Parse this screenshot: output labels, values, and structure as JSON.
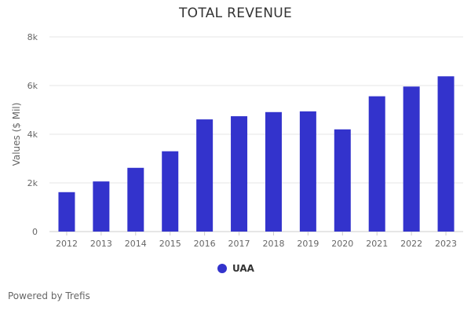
{
  "chart_data": {
    "type": "bar",
    "title": "TOTAL REVENUE",
    "xlabel": "",
    "ylabel": "Values ($ Mil)",
    "categories": [
      "2012",
      "2013",
      "2014",
      "2015",
      "2016",
      "2017",
      "2018",
      "2019",
      "2020",
      "2021",
      "2022",
      "2023"
    ],
    "series": [
      {
        "name": "UAA",
        "color": "#3333cc",
        "values": [
          1620,
          2060,
          2620,
          3300,
          4610,
          4740,
          4910,
          4940,
          4200,
          5560,
          5960,
          6380
        ]
      }
    ],
    "ylim": [
      0,
      8000
    ],
    "yticks": [
      0,
      2000,
      4000,
      6000,
      8000
    ],
    "ytick_labels": [
      "0",
      "2k",
      "4k",
      "6k",
      "8k"
    ],
    "grid": true,
    "legend_position": "bottom-center"
  },
  "footer": {
    "text": "Powered by Trefis"
  }
}
